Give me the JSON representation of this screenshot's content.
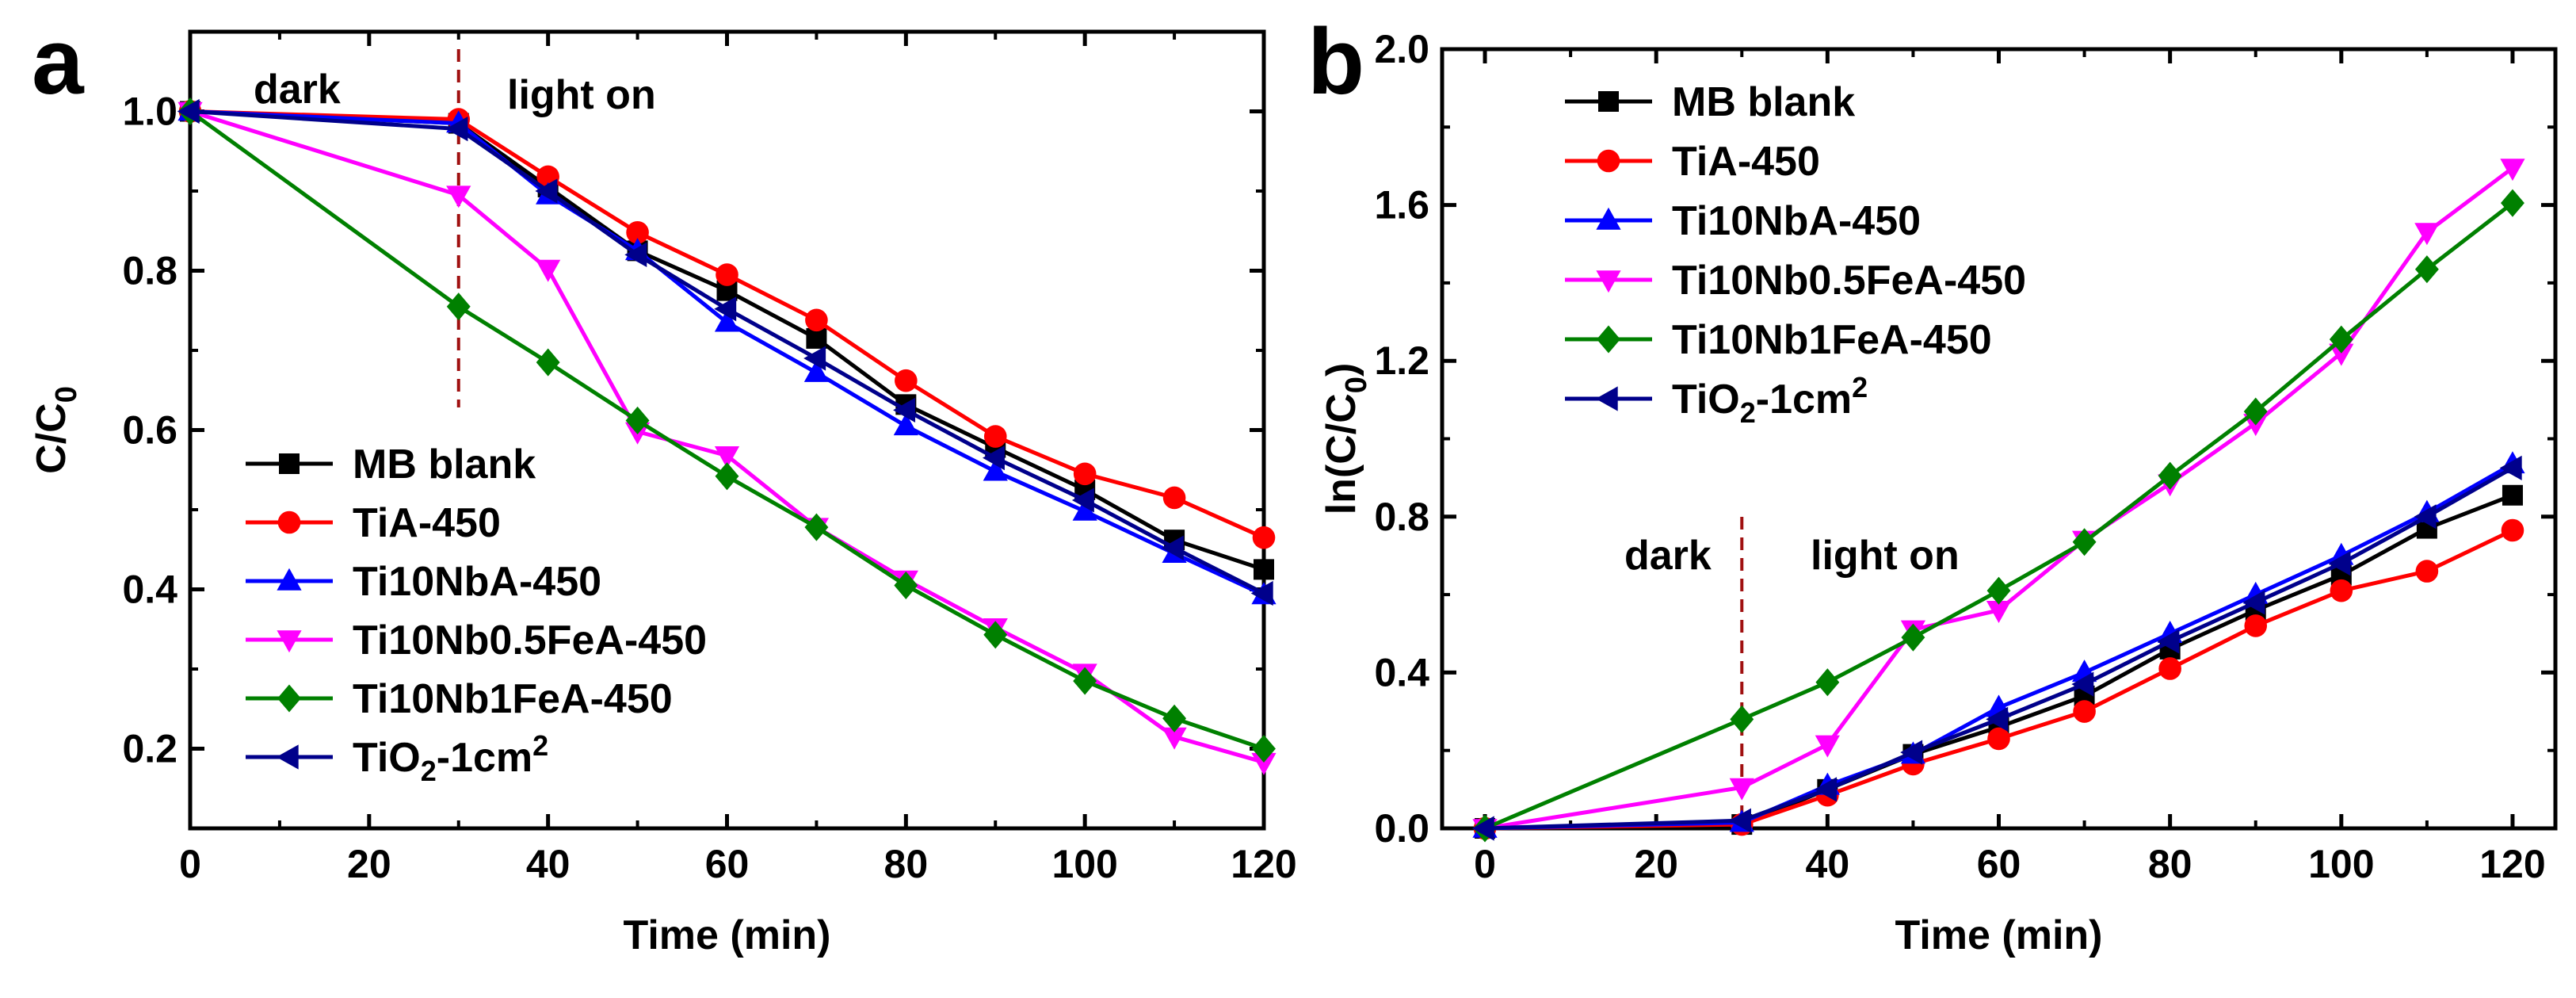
{
  "chart_data": [
    {
      "panel": "a",
      "type": "line",
      "title": "",
      "xlabel": "Time (min)",
      "ylabel": "C/C0",
      "xlim": [
        0,
        120
      ],
      "ylim": [
        0.1,
        1.1
      ],
      "xticks": [
        0,
        20,
        40,
        60,
        80,
        100,
        120
      ],
      "xtick_labels": [
        "0",
        "20",
        "40",
        "60",
        "80",
        "100",
        "120"
      ],
      "yticks": [
        0.2,
        0.4,
        0.6,
        0.8,
        1.0
      ],
      "ytick_labels": [
        "0.2",
        "0.4",
        "0.6",
        "0.8",
        "1.0"
      ],
      "grid": false,
      "legend_position": "lower-left",
      "annotations": {
        "dark": "dark",
        "light_on": "light on",
        "divider_x": 30
      },
      "series": [
        {
          "name": "MB blank",
          "color": "#000000",
          "marker": "square",
          "x": [
            0,
            30,
            40,
            50,
            60,
            70,
            80,
            90,
            100,
            110,
            120
          ],
          "y": [
            1.0,
            0.985,
            0.905,
            0.825,
            0.775,
            0.715,
            0.632,
            0.578,
            0.525,
            0.462,
            0.425
          ]
        },
        {
          "name": "TiA-450",
          "color": "#ff0000",
          "marker": "circle",
          "x": [
            0,
            30,
            40,
            50,
            60,
            70,
            80,
            90,
            100,
            110,
            120
          ],
          "y": [
            1.0,
            0.99,
            0.918,
            0.848,
            0.795,
            0.738,
            0.662,
            0.592,
            0.545,
            0.515,
            0.465
          ]
        },
        {
          "name": "Ti10NbA-450",
          "color": "#0000ff",
          "marker": "triangle-up",
          "x": [
            0,
            30,
            40,
            50,
            60,
            70,
            80,
            90,
            100,
            110,
            120
          ],
          "y": [
            1.0,
            0.985,
            0.895,
            0.825,
            0.735,
            0.672,
            0.605,
            0.548,
            0.498,
            0.445,
            0.393
          ]
        },
        {
          "name": "Ti10Nb0.5FeA-450",
          "color": "#ff00ff",
          "marker": "triangle-down",
          "x": [
            0,
            30,
            40,
            50,
            60,
            70,
            80,
            90,
            100,
            110,
            120
          ],
          "y": [
            1.0,
            0.895,
            0.802,
            0.598,
            0.568,
            0.478,
            0.412,
            0.352,
            0.295,
            0.215,
            0.183
          ]
        },
        {
          "name": "Ti10Nb1FeA-450",
          "color": "#008000",
          "marker": "diamond",
          "x": [
            0,
            30,
            40,
            50,
            60,
            70,
            80,
            90,
            100,
            110,
            120
          ],
          "y": [
            1.0,
            0.755,
            0.685,
            0.612,
            0.542,
            0.478,
            0.405,
            0.343,
            0.285,
            0.238,
            0.2
          ]
        },
        {
          "name": "TiO2-1cm2",
          "color": "#00008b",
          "marker": "triangle-left",
          "x": [
            0,
            30,
            40,
            50,
            60,
            70,
            80,
            90,
            100,
            110,
            120
          ],
          "y": [
            1.0,
            0.978,
            0.9,
            0.82,
            0.752,
            0.69,
            0.625,
            0.565,
            0.512,
            0.452,
            0.395
          ]
        }
      ]
    },
    {
      "panel": "b",
      "type": "line",
      "title": "",
      "xlabel": "Time (min)",
      "ylabel": "ln(C/C0)",
      "xlim": [
        -5,
        125
      ],
      "ylim": [
        0,
        2.0
      ],
      "xticks": [
        0,
        20,
        40,
        60,
        80,
        100,
        120
      ],
      "xtick_labels": [
        "0",
        "20",
        "40",
        "60",
        "80",
        "100",
        "120"
      ],
      "yticks": [
        0.0,
        0.4,
        0.8,
        1.2,
        1.6,
        2.0
      ],
      "ytick_labels": [
        "0.0",
        "0.4",
        "0.8",
        "1.2",
        "1.6",
        "2.0"
      ],
      "grid": false,
      "legend_position": "upper-left",
      "annotations": {
        "dark": "dark",
        "light_on": "light on",
        "divider_x": 30
      },
      "series": [
        {
          "name": "MB blank",
          "color": "#000000",
          "marker": "square",
          "x": [
            0,
            30,
            40,
            50,
            60,
            70,
            80,
            90,
            100,
            110,
            120
          ],
          "y": [
            0.0,
            0.01,
            0.1,
            0.19,
            0.26,
            0.34,
            0.46,
            0.56,
            0.65,
            0.77,
            0.855
          ]
        },
        {
          "name": "TiA-450",
          "color": "#ff0000",
          "marker": "circle",
          "x": [
            0,
            30,
            40,
            50,
            60,
            70,
            80,
            90,
            100,
            110,
            120
          ],
          "y": [
            0.0,
            0.01,
            0.085,
            0.165,
            0.23,
            0.3,
            0.41,
            0.52,
            0.61,
            0.66,
            0.765
          ]
        },
        {
          "name": "Ti10NbA-450",
          "color": "#0000ff",
          "marker": "triangle-up",
          "x": [
            0,
            30,
            40,
            50,
            60,
            70,
            80,
            90,
            100,
            110,
            120
          ],
          "y": [
            0.0,
            0.015,
            0.11,
            0.19,
            0.31,
            0.4,
            0.5,
            0.6,
            0.7,
            0.81,
            0.935
          ]
        },
        {
          "name": "Ti10Nb0.5FeA-450",
          "color": "#ff00ff",
          "marker": "triangle-down",
          "x": [
            0,
            30,
            40,
            50,
            60,
            70,
            80,
            90,
            100,
            110,
            120
          ],
          "y": [
            0.0,
            0.105,
            0.215,
            0.51,
            0.56,
            0.74,
            0.885,
            1.04,
            1.22,
            1.53,
            1.695
          ]
        },
        {
          "name": "Ti10Nb1FeA-450",
          "color": "#008000",
          "marker": "diamond",
          "x": [
            0,
            30,
            40,
            50,
            60,
            70,
            80,
            90,
            100,
            110,
            120
          ],
          "y": [
            0.0,
            0.28,
            0.375,
            0.49,
            0.61,
            0.735,
            0.905,
            1.07,
            1.255,
            1.435,
            1.605
          ]
        },
        {
          "name": "TiO2-1cm2",
          "color": "#00008b",
          "marker": "triangle-left",
          "x": [
            0,
            30,
            40,
            50,
            60,
            70,
            80,
            90,
            100,
            110,
            120
          ],
          "y": [
            0.0,
            0.02,
            0.1,
            0.195,
            0.28,
            0.37,
            0.48,
            0.58,
            0.68,
            0.8,
            0.925
          ]
        }
      ]
    }
  ],
  "figure": {
    "panel_labels": [
      "a",
      "b"
    ],
    "dark_label": "dark",
    "light_on_label": "light on",
    "divider_color": "#a01010",
    "legend_subscripts": {
      "TiO2-1cm2": {
        "base": "TiO",
        "sub": "2",
        "mid": "-1cm",
        "sup": "2"
      }
    }
  }
}
